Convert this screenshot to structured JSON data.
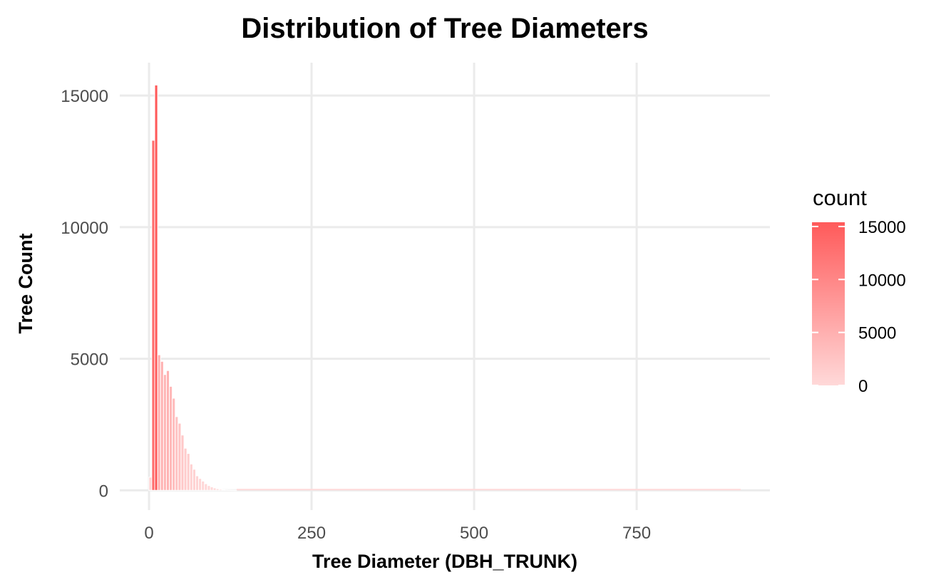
{
  "chart_data": {
    "type": "bar",
    "title": "Distribution of Tree Diameters",
    "xlabel": "Tree Diameter (DBH_TRUNK)",
    "ylabel": "Tree Count",
    "xlim": [
      -45,
      955
    ],
    "ylim": [
      -750,
      16250
    ],
    "x_ticks": [
      0,
      250,
      500,
      750
    ],
    "x_tick_labels": [
      "0",
      "250",
      "500",
      "750"
    ],
    "y_ticks": [
      0,
      5000,
      10000,
      15000
    ],
    "y_tick_labels": [
      "0",
      "5000",
      "10000",
      "15000"
    ],
    "grid": true,
    "bin_width": 4.5,
    "bins": [
      {
        "x": 2,
        "count": 500
      },
      {
        "x": 6.5,
        "count": 13300
      },
      {
        "x": 11,
        "count": 15400
      },
      {
        "x": 15.5,
        "count": 5150
      },
      {
        "x": 20,
        "count": 4900
      },
      {
        "x": 24.5,
        "count": 4400
      },
      {
        "x": 29,
        "count": 4550
      },
      {
        "x": 33.5,
        "count": 3950
      },
      {
        "x": 38,
        "count": 3500
      },
      {
        "x": 42.5,
        "count": 2800
      },
      {
        "x": 47,
        "count": 2550
      },
      {
        "x": 51.5,
        "count": 2100
      },
      {
        "x": 56,
        "count": 1600
      },
      {
        "x": 60.5,
        "count": 1400
      },
      {
        "x": 65,
        "count": 1000
      },
      {
        "x": 69.5,
        "count": 800
      },
      {
        "x": 74,
        "count": 550
      },
      {
        "x": 78.5,
        "count": 450
      },
      {
        "x": 83,
        "count": 350
      },
      {
        "x": 87.5,
        "count": 250
      },
      {
        "x": 92,
        "count": 180
      },
      {
        "x": 96.5,
        "count": 130
      },
      {
        "x": 101,
        "count": 90
      },
      {
        "x": 105.5,
        "count": 60
      },
      {
        "x": 110,
        "count": 40
      },
      {
        "x": 114.5,
        "count": 25
      },
      {
        "x": 119,
        "count": 15
      },
      {
        "x": 123.5,
        "count": 10
      },
      {
        "x": 128,
        "count": 8
      },
      {
        "x": 132.5,
        "count": 5
      }
    ],
    "x_max_observed": 910,
    "legend": {
      "title": "count",
      "position": "right",
      "labels": [
        "15000",
        "10000",
        "5000",
        "0"
      ],
      "values": [
        15000,
        10000,
        5000,
        0
      ],
      "range": [
        0,
        15400
      ],
      "color_low": "#ffd9d9",
      "color_high": "#ff5a5a"
    }
  }
}
